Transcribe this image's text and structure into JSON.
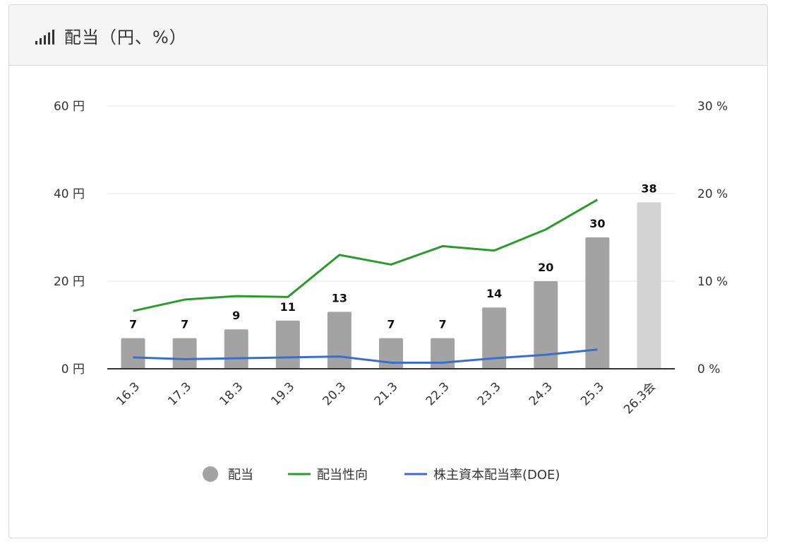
{
  "header": {
    "title": "配当（円、%）",
    "icon": "bar-signal-icon"
  },
  "colors": {
    "bar": "#a3a3a3",
    "bar_forecast": "#d3d3d3",
    "payout": "#2c9a2c",
    "doe": "#3b6ec8",
    "grid": "#e6e6e6",
    "axis": "#333333"
  },
  "chart_data": {
    "type": "bar",
    "categories": [
      "16.3",
      "17.3",
      "18.3",
      "19.3",
      "20.3",
      "21.3",
      "22.3",
      "23.3",
      "24.3",
      "25.3",
      "26.3会"
    ],
    "left_axis": {
      "ticks": [
        0,
        20,
        40,
        60
      ],
      "suffix": " 円",
      "ylim": [
        0,
        60
      ]
    },
    "right_axis": {
      "ticks": [
        0,
        10,
        20,
        30
      ],
      "suffix": " %",
      "ylim": [
        0,
        30
      ]
    },
    "series": [
      {
        "name": "配当",
        "type": "bar",
        "axis": "left",
        "values": [
          7,
          7,
          9,
          11,
          13,
          7,
          7,
          14,
          20,
          30,
          38
        ],
        "forecast_index": [
          10
        ]
      },
      {
        "name": "配当性向",
        "type": "line",
        "axis": "right",
        "values": [
          6.6,
          7.9,
          8.3,
          8.2,
          13.0,
          11.9,
          14.0,
          13.5,
          15.9,
          19.3,
          null
        ]
      },
      {
        "name": "株主資本配当率(DOE)",
        "type": "line",
        "axis": "right",
        "values": [
          1.3,
          1.1,
          1.2,
          1.3,
          1.4,
          0.7,
          0.7,
          1.2,
          1.6,
          2.2,
          null
        ]
      }
    ],
    "legend_position": "bottom",
    "grid": true
  }
}
